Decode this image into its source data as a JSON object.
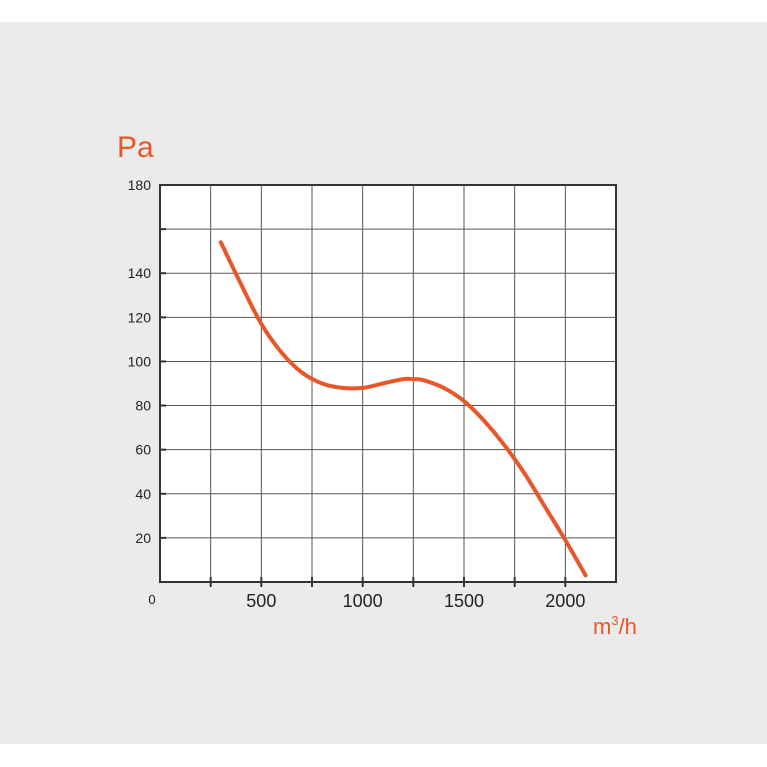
{
  "chart_data": {
    "type": "line",
    "title": "",
    "ylabel": "Pa",
    "xlabel_base": "m",
    "xlabel_sup": "3",
    "xlabel_tail": "/h",
    "origin_label": "0",
    "xlim": [
      0,
      2250
    ],
    "ylim": [
      0,
      180
    ],
    "x_ticks": [
      500,
      1000,
      1500,
      2000
    ],
    "y_ticks": [
      20,
      40,
      60,
      80,
      100,
      120,
      140,
      160,
      180
    ],
    "y_tick_labels": [
      "20",
      "40",
      "60",
      "80",
      "100",
      "120",
      "140",
      "",
      "180"
    ],
    "x_gridlines": [
      250,
      500,
      750,
      1000,
      1250,
      1500,
      1750,
      2000
    ],
    "grid": true,
    "line_color": "#e8562a",
    "series": [
      {
        "x": [
          300,
          400,
          500,
          600,
          700,
          800,
          900,
          1000,
          1100,
          1200,
          1250,
          1300,
          1400,
          1500,
          1600,
          1700,
          1800,
          1900,
          2000,
          2100
        ],
        "values": [
          154,
          135,
          117,
          104,
          95,
          90,
          88,
          88,
          90,
          92,
          92,
          91.5,
          88,
          82,
          73,
          62,
          49,
          34,
          19,
          3
        ]
      }
    ]
  }
}
